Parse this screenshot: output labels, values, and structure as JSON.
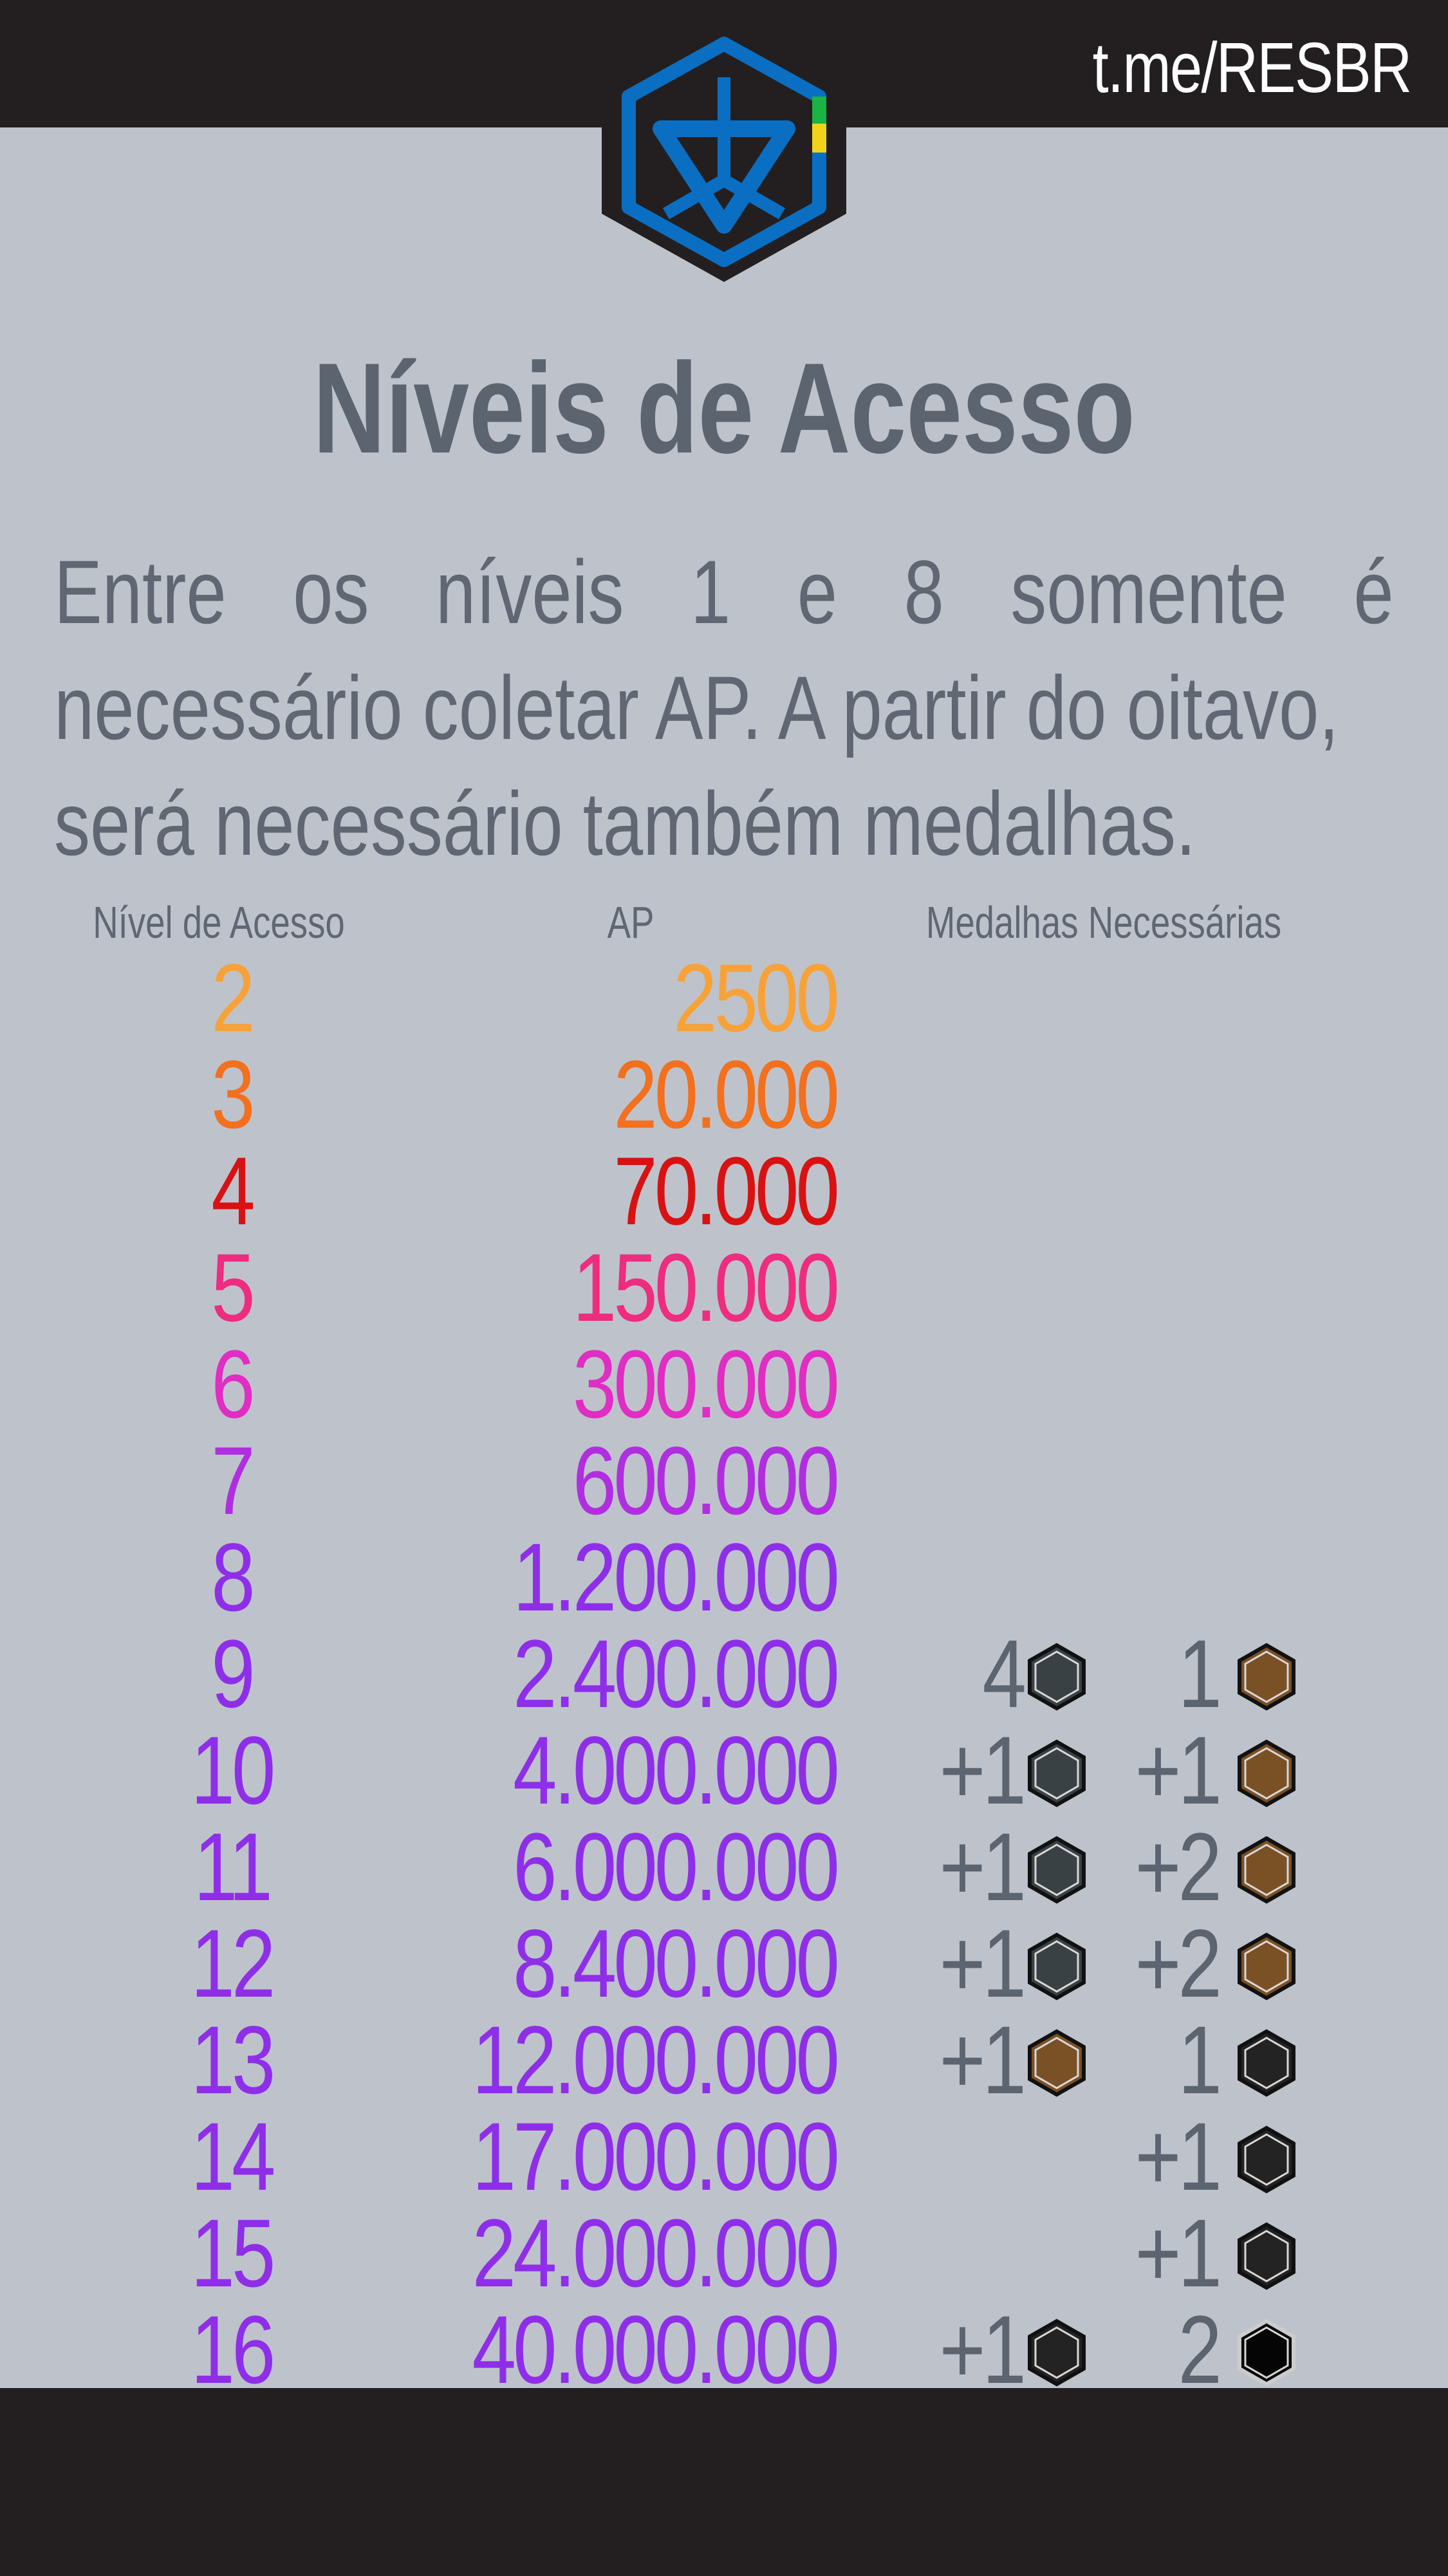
{
  "header": {
    "channel": "t.me/RESBR"
  },
  "title": "Níveis de Acesso",
  "intro": {
    "line1_words": [
      "Entre",
      "os",
      "níveis",
      "1",
      "e",
      "8",
      "somente",
      "é"
    ],
    "line2": "necessário coletar AP. A partir do oitavo,",
    "line3": "será necessário também medalhas."
  },
  "table": {
    "headers": {
      "level": "Nível de Acesso",
      "ap": "AP",
      "medals": "Medalhas Necessárias"
    },
    "colors": {
      "2": "#f7a239",
      "3": "#f2701e",
      "4": "#d81213",
      "5": "#ee2c80",
      "6": "#e02dc3",
      "7": "#b02ee0",
      "8_plus": "#8f2ee8",
      "medal_text": "#5c6470"
    },
    "rows": [
      {
        "level": "2",
        "ap": "2500",
        "color": "#f7a239",
        "m1_count": "",
        "m1_type": "",
        "m2_count": "",
        "m2_type": ""
      },
      {
        "level": "3",
        "ap": "20.000",
        "color": "#f2701e",
        "m1_count": "",
        "m1_type": "",
        "m2_count": "",
        "m2_type": ""
      },
      {
        "level": "4",
        "ap": "70.000",
        "color": "#d81213",
        "m1_count": "",
        "m1_type": "",
        "m2_count": "",
        "m2_type": ""
      },
      {
        "level": "5",
        "ap": "150.000",
        "color": "#ee2c80",
        "m1_count": "",
        "m1_type": "",
        "m2_count": "",
        "m2_type": ""
      },
      {
        "level": "6",
        "ap": "300.000",
        "color": "#e02dc3",
        "m1_count": "",
        "m1_type": "",
        "m2_count": "",
        "m2_type": ""
      },
      {
        "level": "7",
        "ap": "600.000",
        "color": "#b02ee0",
        "m1_count": "",
        "m1_type": "",
        "m2_count": "",
        "m2_type": ""
      },
      {
        "level": "8",
        "ap": "1.200.000",
        "color": "#8f2ee8",
        "m1_count": "",
        "m1_type": "",
        "m2_count": "",
        "m2_type": ""
      },
      {
        "level": "9",
        "ap": "2.400.000",
        "color": "#8f2ee8",
        "m1_count": "4",
        "m1_type": "silver",
        "m2_count": "1",
        "m2_type": "gold"
      },
      {
        "level": "10",
        "ap": "4.000.000",
        "color": "#8f2ee8",
        "m1_count": "+1",
        "m1_type": "silver",
        "m2_count": "+1",
        "m2_type": "gold"
      },
      {
        "level": "11",
        "ap": "6.000.000",
        "color": "#8f2ee8",
        "m1_count": "+1",
        "m1_type": "silver",
        "m2_count": "+2",
        "m2_type": "gold"
      },
      {
        "level": "12",
        "ap": "8.400.000",
        "color": "#8f2ee8",
        "m1_count": "+1",
        "m1_type": "silver",
        "m2_count": "+2",
        "m2_type": "gold"
      },
      {
        "level": "13",
        "ap": "12.000.000",
        "color": "#8f2ee8",
        "m1_count": "+1",
        "m1_type": "gold",
        "m2_count": "1",
        "m2_type": "platinum"
      },
      {
        "level": "14",
        "ap": "17.000.000",
        "color": "#8f2ee8",
        "m1_count": "",
        "m1_type": "",
        "m2_count": "+1",
        "m2_type": "platinum"
      },
      {
        "level": "15",
        "ap": "24.000.000",
        "color": "#8f2ee8",
        "m1_count": "",
        "m1_type": "",
        "m2_count": "+1",
        "m2_type": "platinum"
      },
      {
        "level": "16",
        "ap": "40.000.000",
        "color": "#8f2ee8",
        "m1_count": "+1",
        "m1_type": "platinum",
        "m2_count": "2",
        "m2_type": "onyx"
      }
    ],
    "medal_colors": {
      "silver": "#3a4145",
      "gold": "#7a5025",
      "platinum": "#232323",
      "onyx": "#050505"
    }
  }
}
